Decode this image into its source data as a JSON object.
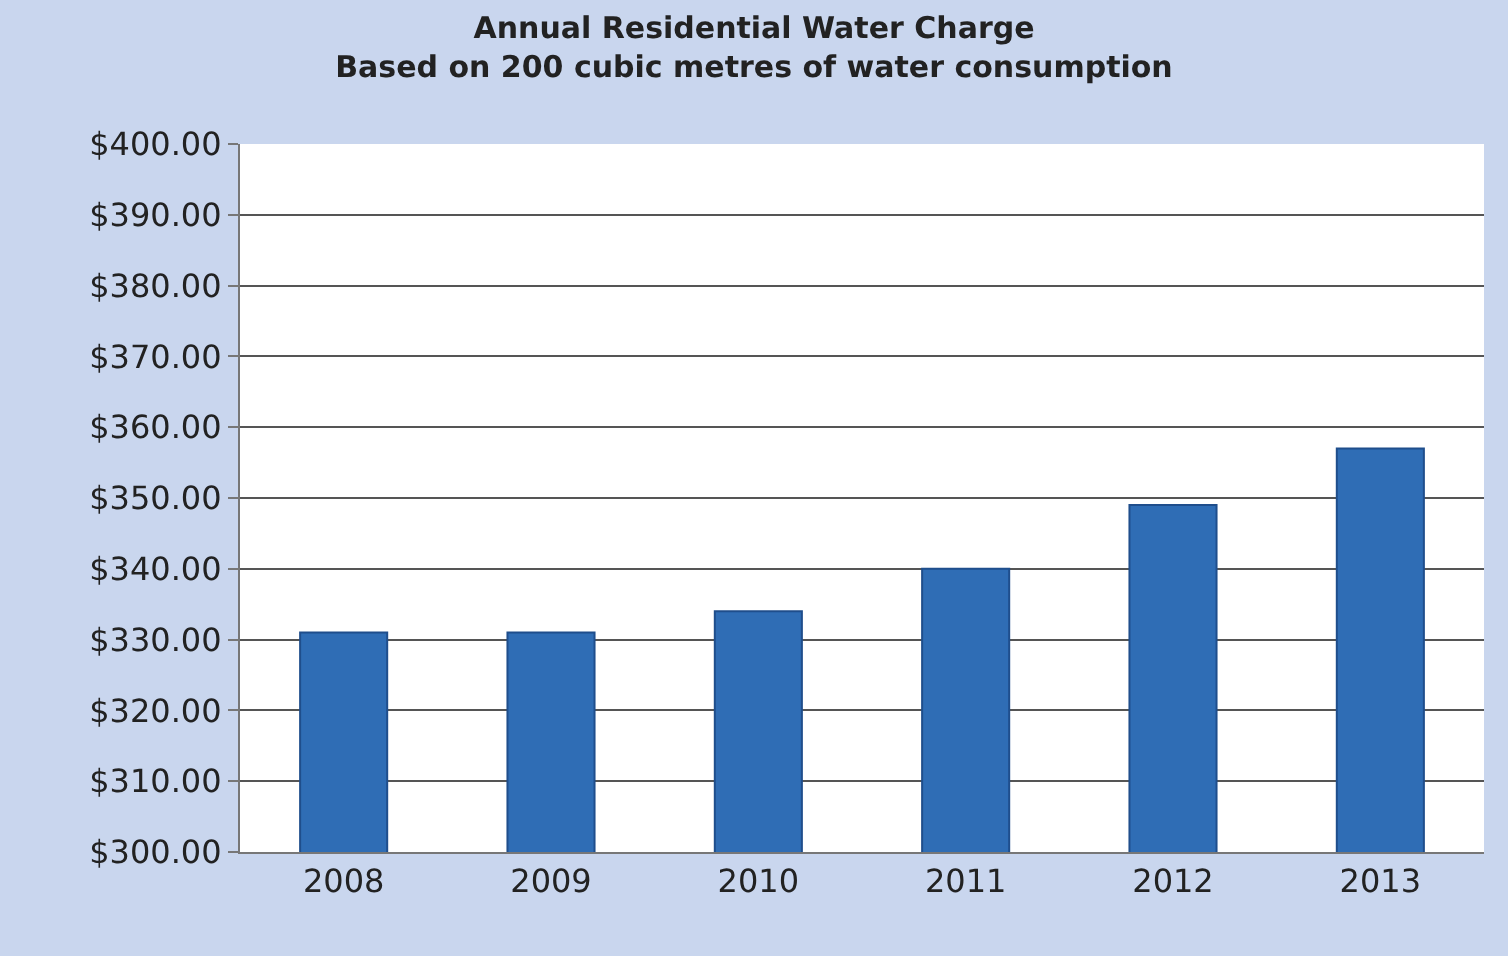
{
  "chart_data": {
    "type": "bar",
    "title": "Annual Residential Water Charge",
    "subtitle": "Based on 200 cubic metres of water consumption",
    "categories": [
      "2008",
      "2009",
      "2010",
      "2011",
      "2012",
      "2013"
    ],
    "series": [
      {
        "color": "#2f6db5",
        "values": [
          331,
          331,
          334,
          340,
          349,
          357
        ]
      }
    ],
    "ylim": [
      300,
      400
    ],
    "yticks": [
      {
        "value": 300,
        "label": "$300.00"
      },
      {
        "value": 310,
        "label": "$310.00"
      },
      {
        "value": 320,
        "label": "$320.00"
      },
      {
        "value": 330,
        "label": "$330.00"
      },
      {
        "value": 340,
        "label": "$340.00"
      },
      {
        "value": 350,
        "label": "$350.00"
      },
      {
        "value": 360,
        "label": "$360.00"
      },
      {
        "value": 370,
        "label": "$370.00"
      },
      {
        "value": 380,
        "label": "$380.00"
      },
      {
        "value": 390,
        "label": "$390.00"
      },
      {
        "value": 400,
        "label": "$400.00"
      }
    ],
    "grid": "y"
  }
}
